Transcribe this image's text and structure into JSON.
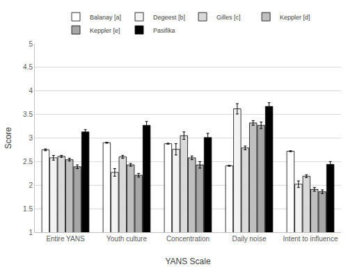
{
  "chart_data": {
    "type": "bar",
    "x_label": "YANS Scale",
    "y_label": "Score",
    "categories": [
      "Entire YANS",
      "Youth culture",
      "Concentration",
      "Daily noise",
      "Intent to influence"
    ],
    "series": [
      {
        "name": "Balanay [a]",
        "color": "#ffffff",
        "values": [
          2.75,
          2.9,
          2.88,
          2.41,
          2.72
        ],
        "errors": [
          0.02,
          0.01,
          0.01,
          0.01,
          0.01
        ]
      },
      {
        "name": "Degeest [b]",
        "color": "#f2f2f2",
        "values": [
          2.58,
          2.27,
          2.76,
          3.62,
          2.02
        ],
        "errors": [
          0.05,
          0.08,
          0.12,
          0.11,
          0.07
        ]
      },
      {
        "name": "Gilles [c]",
        "color": "#d9d9d9",
        "values": [
          2.61,
          2.6,
          3.05,
          2.79,
          2.19
        ],
        "errors": [
          0.02,
          0.03,
          0.08,
          0.04,
          0.03
        ]
      },
      {
        "name": "Keppler [d]",
        "color": "#bfbfbf",
        "values": [
          2.54,
          2.43,
          2.58,
          3.32,
          1.91
        ],
        "errors": [
          0.03,
          0.03,
          0.04,
          0.05,
          0.04
        ]
      },
      {
        "name": "Keppler [e]",
        "color": "#a6a6a6",
        "values": [
          2.39,
          2.21,
          2.43,
          3.27,
          1.86
        ],
        "errors": [
          0.04,
          0.04,
          0.07,
          0.07,
          0.04
        ]
      },
      {
        "name": "Pasifika",
        "color": "#000000",
        "values": [
          3.13,
          3.27,
          3.01,
          3.67,
          2.44
        ],
        "errors": [
          0.05,
          0.08,
          0.09,
          0.08,
          0.06
        ]
      }
    ],
    "ylim": [
      1,
      5
    ],
    "yticks": [
      1,
      1.5,
      2,
      2.5,
      3,
      3.5,
      4,
      4.5,
      5
    ],
    "grid": true,
    "legend": "top"
  }
}
